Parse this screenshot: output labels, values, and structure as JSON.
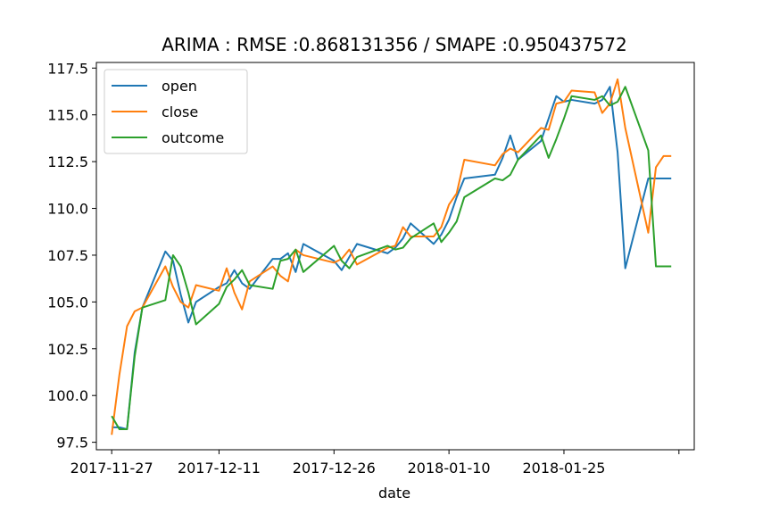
{
  "chart_data": {
    "type": "line",
    "title": "ARIMA : RMSE :0.868131356 / SMAPE :0.950437572",
    "xlabel": "date",
    "ylabel": "",
    "x_type": "date",
    "xlim": [
      "2017-11-25",
      "2018-02-11"
    ],
    "ylim": [
      97.1,
      117.8
    ],
    "x_ticks": [
      "2017-11-27",
      "2017-12-11",
      "2017-12-26",
      "2018-01-10",
      "2018-01-25",
      "2018-02-09"
    ],
    "x_tick_labels": [
      "2017-11-27",
      "2017-12-11",
      "2017-12-26",
      "2018-01-10",
      "2018-01-25",
      ""
    ],
    "y_ticks": [
      97.5,
      100.0,
      102.5,
      105.0,
      107.5,
      110.0,
      112.5,
      115.0,
      117.5
    ],
    "y_tick_labels": [
      "97.5",
      "100.0",
      "102.5",
      "105.0",
      "107.5",
      "110.0",
      "112.5",
      "115.0",
      "117.5"
    ],
    "grid": false,
    "legend_position": "upper-left",
    "x": [
      "2017-11-27",
      "2017-11-28",
      "2017-11-29",
      "2017-11-30",
      "2017-12-01",
      "2017-12-04",
      "2017-12-05",
      "2017-12-06",
      "2017-12-07",
      "2017-12-08",
      "2017-12-11",
      "2017-12-12",
      "2017-12-13",
      "2017-12-14",
      "2017-12-15",
      "2017-12-18",
      "2017-12-19",
      "2017-12-20",
      "2017-12-21",
      "2017-12-22",
      "2017-12-26",
      "2017-12-27",
      "2017-12-28",
      "2017-12-29",
      "2018-01-02",
      "2018-01-03",
      "2018-01-04",
      "2018-01-05",
      "2018-01-08",
      "2018-01-09",
      "2018-01-10",
      "2018-01-11",
      "2018-01-12",
      "2018-01-16",
      "2018-01-17",
      "2018-01-18",
      "2018-01-19",
      "2018-01-22",
      "2018-01-23",
      "2018-01-24",
      "2018-01-25",
      "2018-01-26",
      "2018-01-29",
      "2018-01-30",
      "2018-01-31",
      "2018-02-01",
      "2018-02-02",
      "2018-02-05",
      "2018-02-06",
      "2018-02-07",
      "2018-02-08"
    ],
    "series": [
      {
        "name": "open",
        "color": "#1f77b4",
        "values": [
          98.3,
          98.3,
          98.2,
          102.3,
          104.7,
          107.7,
          107.2,
          105.4,
          103.9,
          105.0,
          105.8,
          106.0,
          106.7,
          106.0,
          105.7,
          107.3,
          107.3,
          107.6,
          106.6,
          108.1,
          107.2,
          106.7,
          107.4,
          108.1,
          107.6,
          107.9,
          108.4,
          109.2,
          108.1,
          108.6,
          109.4,
          110.6,
          111.6,
          111.8,
          112.7,
          113.9,
          112.6,
          113.6,
          114.8,
          116.0,
          115.7,
          115.8,
          115.6,
          115.8,
          116.5,
          113.0,
          106.8,
          111.6,
          111.6,
          111.6,
          111.6
        ]
      },
      {
        "name": "close",
        "color": "#ff7f0e",
        "values": [
          97.9,
          101.1,
          103.7,
          104.5,
          104.7,
          106.9,
          105.8,
          105.0,
          104.7,
          105.9,
          105.6,
          106.8,
          105.5,
          104.6,
          106.1,
          106.9,
          106.4,
          106.1,
          107.8,
          107.5,
          107.1,
          107.3,
          107.8,
          107.0,
          107.9,
          108.0,
          109.0,
          108.5,
          108.5,
          109.0,
          110.2,
          110.8,
          112.6,
          112.3,
          112.9,
          113.2,
          113.0,
          114.3,
          114.2,
          115.6,
          115.7,
          116.3,
          116.2,
          115.1,
          115.6,
          116.9,
          114.3,
          108.7,
          112.2,
          112.8,
          112.8
        ]
      },
      {
        "name": "outcome",
        "color": "#2ca02c",
        "values": [
          98.9,
          98.2,
          98.2,
          102.1,
          104.7,
          105.1,
          107.5,
          106.9,
          105.5,
          103.8,
          104.9,
          105.8,
          106.2,
          106.7,
          105.9,
          105.7,
          107.2,
          107.3,
          107.8,
          106.6,
          108.0,
          107.2,
          106.8,
          107.4,
          108.0,
          107.8,
          107.9,
          108.4,
          109.2,
          108.2,
          108.7,
          109.3,
          110.6,
          111.6,
          111.5,
          111.8,
          112.6,
          113.9,
          112.7,
          113.7,
          114.8,
          116.0,
          115.8,
          116.0,
          115.5,
          115.7,
          116.5,
          113.1,
          106.9,
          106.9,
          106.9
        ]
      }
    ]
  }
}
